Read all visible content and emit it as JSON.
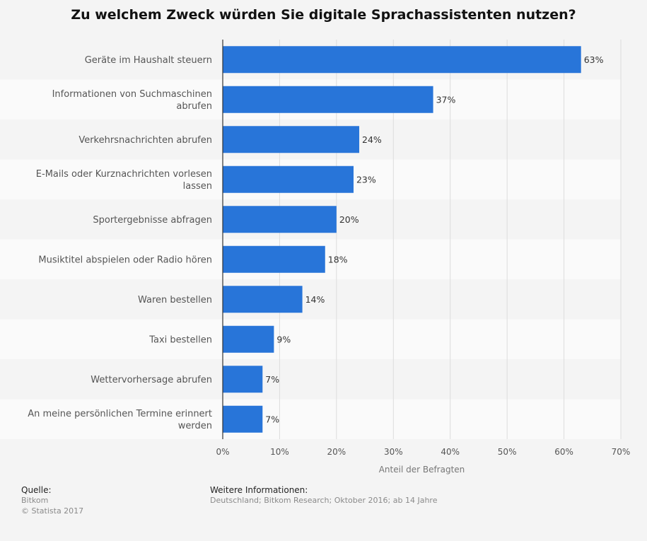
{
  "chart_data": {
    "type": "bar",
    "orientation": "horizontal",
    "title": "Zu welchem Zweck würden Sie digitale Sprachassistenten nutzen?",
    "categories": [
      [
        "Geräte im Haushalt steuern"
      ],
      [
        "Informationen von Suchmaschinen",
        "abrufen"
      ],
      [
        "Verkehrsnachrichten abrufen"
      ],
      [
        "E-Mails oder Kurznachrichten vorlesen",
        "lassen"
      ],
      [
        "Sportergebnisse abfragen"
      ],
      [
        "Musiktitel abspielen oder Radio hören"
      ],
      [
        "Waren bestellen"
      ],
      [
        "Taxi bestellen"
      ],
      [
        "Wettervorhersage abrufen"
      ],
      [
        "An meine persönlichen Termine erinnert",
        "werden"
      ]
    ],
    "values": [
      63,
      37,
      24,
      23,
      20,
      18,
      14,
      9,
      7,
      7
    ],
    "value_labels": [
      "63%",
      "37%",
      "24%",
      "23%",
      "20%",
      "18%",
      "14%",
      "9%",
      "7%",
      "7%"
    ],
    "xlabel": "Anteil der Befragten",
    "xlim": [
      0,
      70
    ],
    "xticks": [
      "0%",
      "10%",
      "20%",
      "30%",
      "40%",
      "50%",
      "60%",
      "70%"
    ],
    "grid": true,
    "bar_color": "#2875d9"
  },
  "footer": {
    "source_heading": "Quelle:",
    "source_lines": [
      "Bitkom",
      "© Statista 2017"
    ],
    "info_heading": "Weitere Informationen:",
    "info_lines": [
      "Deutschland; Bitkom Research; Oktober 2016; ab 14 Jahre"
    ]
  }
}
